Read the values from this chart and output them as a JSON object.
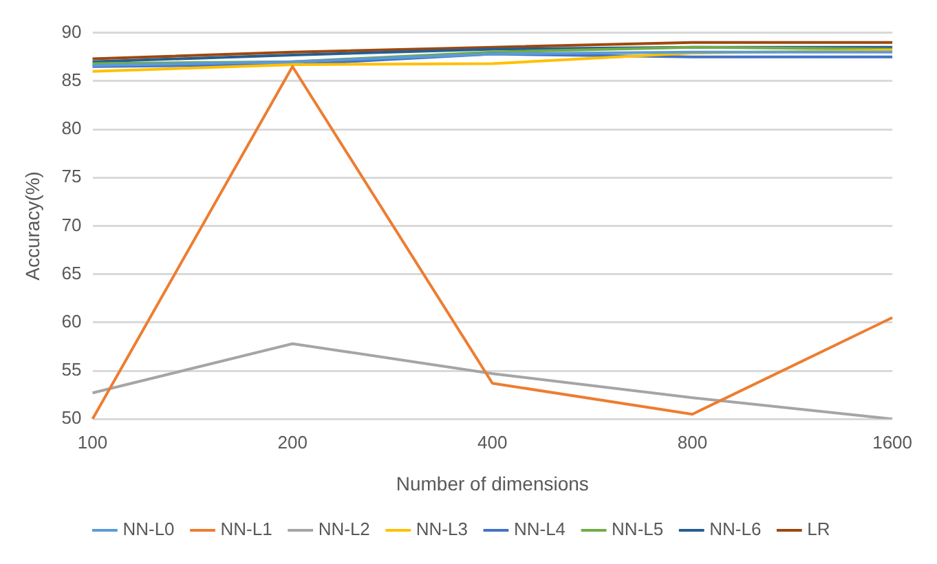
{
  "chart_data": {
    "type": "line",
    "xlabel": "Number of dimensions",
    "ylabel": "Accuracy(%)",
    "categories": [
      "100",
      "200",
      "400",
      "800",
      "1600"
    ],
    "ylim": [
      50,
      90
    ],
    "yticks": [
      50,
      55,
      60,
      65,
      70,
      75,
      80,
      85,
      90
    ],
    "grid": "y",
    "legend": "bottom",
    "marker": "none",
    "series": [
      {
        "name": "NN-L0",
        "color": "#5b9bd5",
        "values": [
          86.6,
          87.0,
          87.8,
          88.0,
          88.0
        ]
      },
      {
        "name": "NN-L1",
        "color": "#ed7d31",
        "values": [
          50.0,
          86.5,
          53.7,
          50.5,
          60.5
        ]
      },
      {
        "name": "NN-L2",
        "color": "#a5a5a5",
        "values": [
          52.7,
          57.8,
          54.7,
          52.2,
          50.0
        ]
      },
      {
        "name": "NN-L3",
        "color": "#ffc000",
        "values": [
          86.0,
          86.7,
          86.8,
          87.9,
          88.2
        ]
      },
      {
        "name": "NN-L4",
        "color": "#4472c4",
        "values": [
          86.5,
          86.7,
          87.8,
          87.5,
          87.5
        ]
      },
      {
        "name": "NN-L5",
        "color": "#70ad47",
        "values": [
          86.8,
          87.0,
          88.0,
          88.5,
          88.3
        ]
      },
      {
        "name": "NN-L6",
        "color": "#255e91",
        "values": [
          87.0,
          87.7,
          88.3,
          88.5,
          88.5
        ]
      },
      {
        "name": "LR",
        "color": "#9e480e",
        "values": [
          87.3,
          88.0,
          88.5,
          89.0,
          89.0
        ]
      }
    ]
  }
}
